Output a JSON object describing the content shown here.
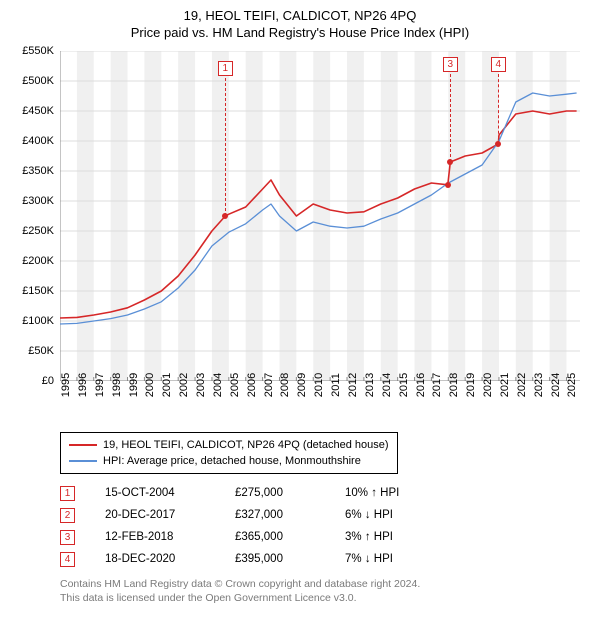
{
  "title": "19, HEOL TEIFI, CALDICOT, NP26 4PQ",
  "subtitle": "Price paid vs. HM Land Registry's House Price Index (HPI)",
  "chart": {
    "type": "line",
    "background_color": "#ffffff",
    "grid_color": "#dddddd",
    "band_color": "#f0f0f0",
    "xlim": [
      1995,
      2025.8
    ],
    "ylim": [
      0,
      550000
    ],
    "ytick_step": 50000,
    "y_ticks": [
      "£0",
      "£50K",
      "£100K",
      "£150K",
      "£200K",
      "£250K",
      "£300K",
      "£350K",
      "£400K",
      "£450K",
      "£500K",
      "£550K"
    ],
    "x_ticks": [
      "1995",
      "1996",
      "1997",
      "1998",
      "1999",
      "2000",
      "2001",
      "2002",
      "2003",
      "2004",
      "2005",
      "2006",
      "2007",
      "2008",
      "2009",
      "2010",
      "2011",
      "2012",
      "2013",
      "2014",
      "2015",
      "2016",
      "2017",
      "2018",
      "2019",
      "2020",
      "2021",
      "2022",
      "2023",
      "2024",
      "2025"
    ],
    "series": [
      {
        "name": "19, HEOL TEIFI, CALDICOT, NP26 4PQ (detached house)",
        "color": "#d62728",
        "line_width": 1.6,
        "data": [
          [
            1995,
            105000
          ],
          [
            1996,
            106000
          ],
          [
            1997,
            110000
          ],
          [
            1998,
            115000
          ],
          [
            1999,
            122000
          ],
          [
            2000,
            135000
          ],
          [
            2001,
            150000
          ],
          [
            2002,
            175000
          ],
          [
            2003,
            210000
          ],
          [
            2004,
            250000
          ],
          [
            2004.79,
            275000
          ],
          [
            2005,
            278000
          ],
          [
            2006,
            290000
          ],
          [
            2007,
            320000
          ],
          [
            2007.5,
            335000
          ],
          [
            2008,
            310000
          ],
          [
            2009,
            275000
          ],
          [
            2010,
            295000
          ],
          [
            2011,
            285000
          ],
          [
            2012,
            280000
          ],
          [
            2013,
            282000
          ],
          [
            2014,
            295000
          ],
          [
            2015,
            305000
          ],
          [
            2016,
            320000
          ],
          [
            2017,
            330000
          ],
          [
            2017.97,
            327000
          ],
          [
            2018.12,
            365000
          ],
          [
            2019,
            375000
          ],
          [
            2020,
            380000
          ],
          [
            2020.96,
            395000
          ],
          [
            2021,
            410000
          ],
          [
            2022,
            445000
          ],
          [
            2023,
            450000
          ],
          [
            2024,
            445000
          ],
          [
            2025,
            450000
          ],
          [
            2025.6,
            450000
          ]
        ]
      },
      {
        "name": "HPI: Average price, detached house, Monmouthshire",
        "color": "#5a8fd6",
        "line_width": 1.3,
        "data": [
          [
            1995,
            95000
          ],
          [
            1996,
            96000
          ],
          [
            1997,
            100000
          ],
          [
            1998,
            104000
          ],
          [
            1999,
            110000
          ],
          [
            2000,
            120000
          ],
          [
            2001,
            132000
          ],
          [
            2002,
            155000
          ],
          [
            2003,
            185000
          ],
          [
            2004,
            225000
          ],
          [
            2005,
            248000
          ],
          [
            2006,
            262000
          ],
          [
            2007,
            285000
          ],
          [
            2007.5,
            295000
          ],
          [
            2008,
            275000
          ],
          [
            2009,
            250000
          ],
          [
            2010,
            265000
          ],
          [
            2011,
            258000
          ],
          [
            2012,
            255000
          ],
          [
            2013,
            258000
          ],
          [
            2014,
            270000
          ],
          [
            2015,
            280000
          ],
          [
            2016,
            295000
          ],
          [
            2017,
            310000
          ],
          [
            2018,
            330000
          ],
          [
            2019,
            345000
          ],
          [
            2020,
            360000
          ],
          [
            2021,
            400000
          ],
          [
            2022,
            465000
          ],
          [
            2023,
            480000
          ],
          [
            2024,
            475000
          ],
          [
            2025,
            478000
          ],
          [
            2025.6,
            480000
          ]
        ]
      }
    ],
    "markers": [
      {
        "n": "1",
        "x": 2004.79,
        "y": 275000,
        "label_y_offset": -155
      },
      {
        "n": "3",
        "x": 2018.12,
        "y": 365000,
        "label_y_offset": -105
      },
      {
        "n": "4",
        "x": 2020.96,
        "y": 395000,
        "label_y_offset": -87
      }
    ],
    "hidden_markers": [
      {
        "n": "2",
        "x": 2017.97,
        "y": 327000
      }
    ]
  },
  "legend": {
    "items": [
      {
        "color": "#d62728",
        "label": "19, HEOL TEIFI, CALDICOT, NP26 4PQ (detached house)"
      },
      {
        "color": "#5a8fd6",
        "label": "HPI: Average price, detached house, Monmouthshire"
      }
    ]
  },
  "sales": [
    {
      "n": "1",
      "date": "15-OCT-2004",
      "price": "£275,000",
      "diff": "10% ↑ HPI"
    },
    {
      "n": "2",
      "date": "20-DEC-2017",
      "price": "£327,000",
      "diff": "6% ↓ HPI"
    },
    {
      "n": "3",
      "date": "12-FEB-2018",
      "price": "£365,000",
      "diff": "3% ↑ HPI"
    },
    {
      "n": "4",
      "date": "18-DEC-2020",
      "price": "£395,000",
      "diff": "7% ↓ HPI"
    }
  ],
  "footnote_line1": "Contains HM Land Registry data © Crown copyright and database right 2024.",
  "footnote_line2": "This data is licensed under the Open Government Licence v3.0.",
  "marker_border_color": "#d62728"
}
